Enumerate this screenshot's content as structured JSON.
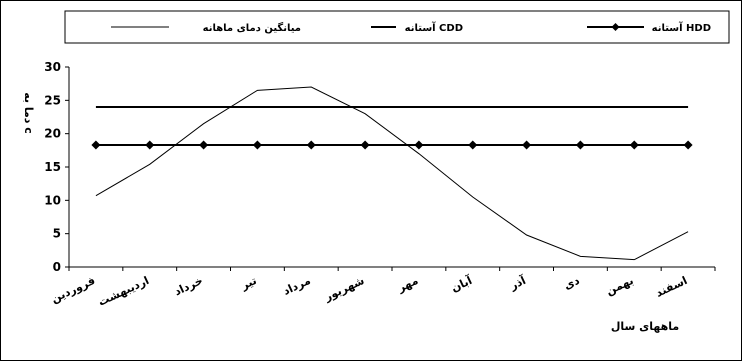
{
  "chart_data": {
    "type": "line",
    "categories": [
      "فروردین",
      "اردیبهشت",
      "خرداد",
      "تیر",
      "مرداد",
      "شهریور",
      "مهر",
      "آبان",
      "آذر",
      "دی",
      "بهمن",
      "اسفند"
    ],
    "xlabel": "ماههای سال",
    "ylabel": "دما به c",
    "ylim": [
      0,
      30
    ],
    "yticks": [
      "0",
      "5",
      "10",
      "15",
      "20",
      "25",
      "30"
    ],
    "grid": false,
    "legend_position": "top",
    "series": [
      {
        "name": "میانگین دمای ماهانه",
        "values": [
          10.7,
          15.4,
          21.5,
          26.5,
          27.0,
          23.0,
          17.0,
          10.5,
          4.8,
          1.6,
          1.1,
          5.3
        ],
        "color": "#000000",
        "marker": "none",
        "width": 1
      },
      {
        "name": "آستانه CDD",
        "values": [
          24,
          24,
          24,
          24,
          24,
          24,
          24,
          24,
          24,
          24,
          24,
          24
        ],
        "color": "#000000",
        "marker": "none",
        "width": 2
      },
      {
        "name": "آستانه HDD",
        "values": [
          18.3,
          18.3,
          18.3,
          18.3,
          18.3,
          18.3,
          18.3,
          18.3,
          18.3,
          18.3,
          18.3,
          18.3
        ],
        "color": "#000000",
        "marker": "diamond",
        "width": 2
      }
    ]
  }
}
